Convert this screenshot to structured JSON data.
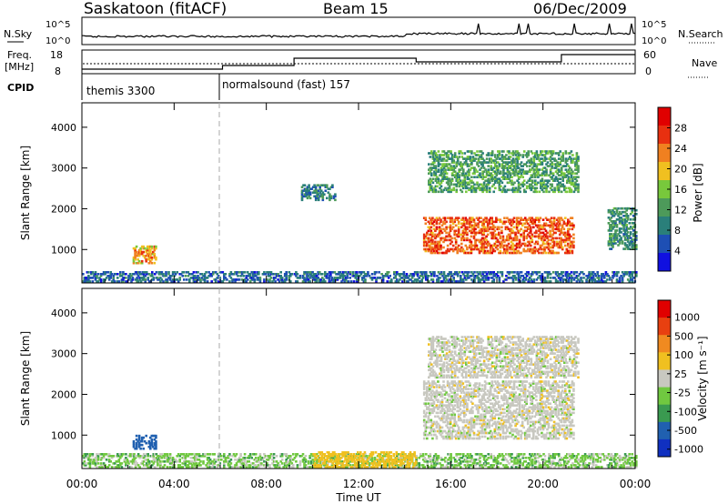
{
  "header": {
    "station": "Saskatoon (fitACF)",
    "beam": "Beam 15",
    "date": "06/Dec/2009"
  },
  "noise_panel": {
    "left_label": "N.Sky",
    "left_ticks": [
      "10^5",
      "10^0"
    ],
    "right_label": "N.Search",
    "right_ticks": [
      "10^5",
      "10^0"
    ]
  },
  "freq_panel": {
    "left_label_1": "Freq.",
    "left_label_2": "[MHz]",
    "left_ticks": [
      "18",
      "8"
    ],
    "right_label": "Nave",
    "right_ticks": [
      "60",
      "0"
    ]
  },
  "cpid_panel": {
    "label": "CPID",
    "modes": [
      {
        "name": "themis 3300",
        "start_hour": 0,
        "end_hour": 6.1
      },
      {
        "name": "normalsound (fast) 157",
        "start_hour": 6.1,
        "end_hour": 24
      }
    ]
  },
  "colors": {
    "power_scale": [
      "#1010e0",
      "#1e4fb4",
      "#2a7f7a",
      "#4d9a5a",
      "#78c83c",
      "#f0c020",
      "#f08020",
      "#e83010",
      "#e00000"
    ],
    "velocity_scale": [
      "#1030c0",
      "#2060b0",
      "#3a9a50",
      "#70c840",
      "#c8c8c0",
      "#f0c020",
      "#f08a20",
      "#e84010",
      "#e00000"
    ],
    "ground_scatter": "#c8c8c0",
    "noise_line": "#000000"
  },
  "chart_data": [
    {
      "type": "heatmap",
      "title": "",
      "xlabel": "Time UT",
      "ylabel": "Slant Range [km]",
      "xlim": [
        0,
        24
      ],
      "ylim": [
        180,
        4600
      ],
      "x_ticks": [
        "00:00",
        "04:00",
        "08:00",
        "12:00",
        "16:00",
        "20:00",
        "00:00"
      ],
      "y_ticks": [
        "1000",
        "2000",
        "3000",
        "4000"
      ],
      "y_tick_values": [
        1000,
        2000,
        3000,
        4000
      ],
      "colorbar": {
        "label": "Power [dB]",
        "ticks": [
          "4",
          "8",
          "12",
          "16",
          "20",
          "24",
          "28"
        ],
        "range": [
          0,
          32
        ]
      },
      "regions": [
        {
          "name": "near-range echoes",
          "t": [
            0,
            24
          ],
          "r": [
            200,
            450
          ],
          "level": 6
        },
        {
          "name": "early patch",
          "t": [
            2.2,
            3.2
          ],
          "r": [
            650,
            1100
          ],
          "level": 22
        },
        {
          "name": "pre-midnight blob",
          "t": [
            9.5,
            11
          ],
          "r": [
            2200,
            2600
          ],
          "level": 8
        },
        {
          "name": "main band",
          "t": [
            14.8,
            21.3
          ],
          "r": [
            900,
            1800
          ],
          "level": 26
        },
        {
          "name": "upper band",
          "t": [
            15,
            21.5
          ],
          "r": [
            2400,
            3400
          ],
          "level": 12
        },
        {
          "name": "late patch",
          "t": [
            22.8,
            24
          ],
          "r": [
            1000,
            2000
          ],
          "level": 10
        }
      ]
    },
    {
      "type": "heatmap",
      "title": "",
      "xlabel": "Time UT",
      "ylabel": "Slant Range [km]",
      "xlim": [
        0,
        24
      ],
      "ylim": [
        180,
        4600
      ],
      "x_ticks": [
        "00:00",
        "04:00",
        "08:00",
        "12:00",
        "16:00",
        "20:00",
        "00:00"
      ],
      "y_ticks": [
        "1000",
        "2000",
        "3000",
        "4000"
      ],
      "y_tick_values": [
        1000,
        2000,
        3000,
        4000
      ],
      "colorbar": {
        "label": "Velocity [m s⁻¹]",
        "ticks": [
          "1000",
          "500",
          "100",
          "25",
          "-25",
          "-100",
          "-500",
          "-1000"
        ],
        "range": [
          -1000,
          1000
        ]
      },
      "regions": [
        {
          "name": "near-range echoes",
          "t": [
            0,
            24
          ],
          "r": [
            200,
            550
          ],
          "level": 40
        },
        {
          "name": "noon near range",
          "t": [
            10,
            14.5
          ],
          "r": [
            200,
            600
          ],
          "level": -60
        },
        {
          "name": "early patch",
          "t": [
            2.2,
            3.2
          ],
          "r": [
            650,
            1000
          ],
          "level": 300
        },
        {
          "name": "ground scatter band",
          "t": [
            14.8,
            21.3
          ],
          "r": [
            900,
            2300
          ],
          "level": 0
        },
        {
          "name": "upper scatter",
          "t": [
            15,
            21.5
          ],
          "r": [
            2400,
            3400
          ],
          "level": 0
        }
      ]
    }
  ]
}
